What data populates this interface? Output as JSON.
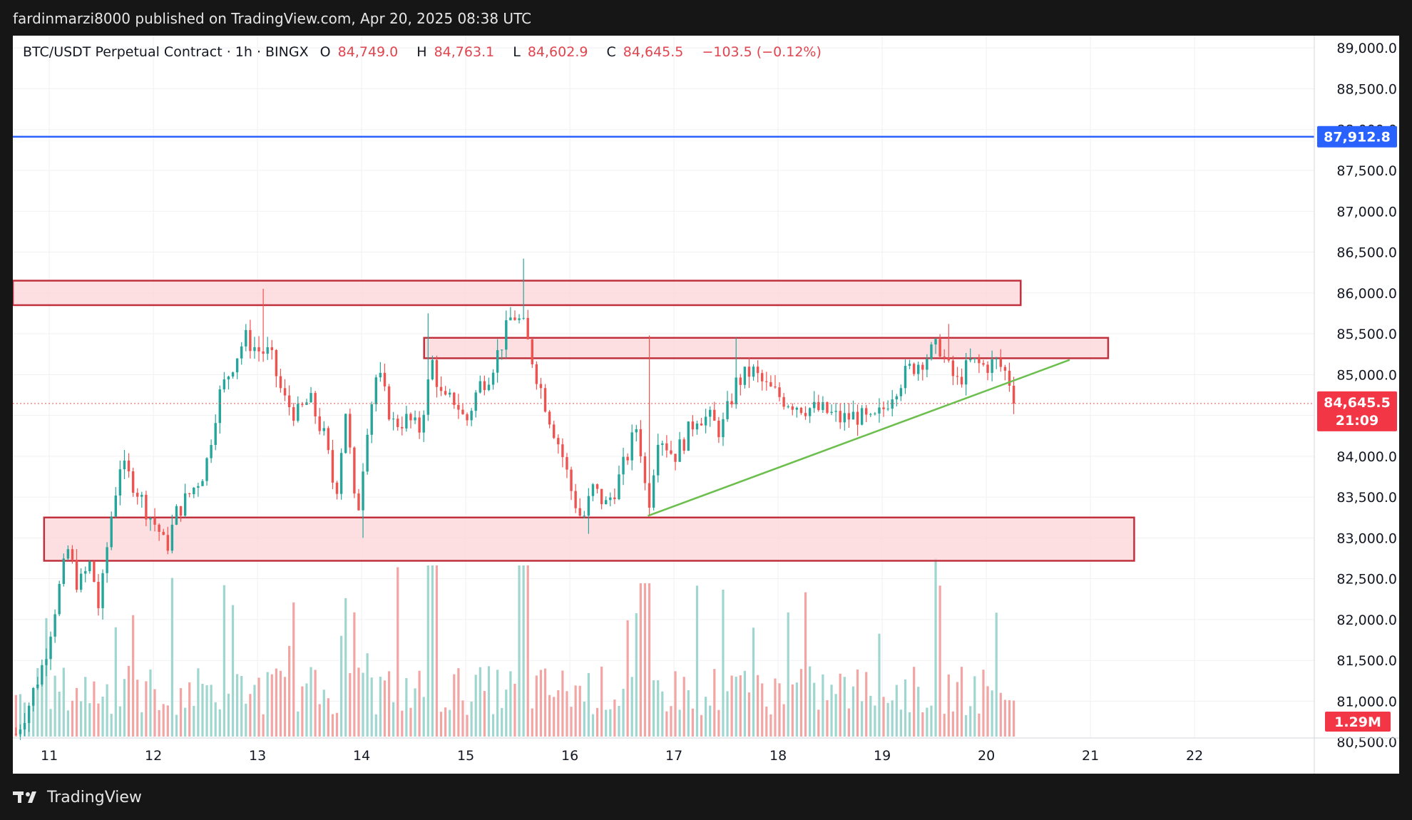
{
  "header": {
    "published_text": "fardinmarzi8000 published on TradingView.com, Apr 20, 2025 08:38 UTC"
  },
  "footer": {
    "brand": "TradingView"
  },
  "legend": {
    "symbol": "BTC/USDT Perpetual Contract · 1h · BINGX",
    "open_label": "O",
    "open": "84,749.0",
    "high_label": "H",
    "high": "84,763.1",
    "low_label": "L",
    "low": "84,602.9",
    "close_label": "C",
    "close": "84,645.5",
    "change": "−103.5 (−0.12%)"
  },
  "colors": {
    "up": "#26a69a",
    "down": "#ef5350",
    "vol_up": "#9fd6cf",
    "vol_down": "#f3a5a4",
    "zone_fill": "#fdd7da",
    "zone_stroke": "#c0313d",
    "h_line": "#2962ff",
    "trend_line": "#6cbf4e",
    "price_label_bg": "#f23645"
  },
  "chart_data": {
    "type": "candlestick",
    "y_axis": {
      "range": [
        80550,
        89150
      ],
      "tick_labels": [
        "89,000.0",
        "88,500.0",
        "88,000.0",
        "87,500.0",
        "87,000.0",
        "86,500.0",
        "86,000.0",
        "85,500.0",
        "85,000.0",
        "84,500.0",
        "84,000.0",
        "83,500.0",
        "83,000.0",
        "82,500.0",
        "82,000.0",
        "81,500.0",
        "81,000.0",
        "80,500.0"
      ],
      "tick_values": [
        89000,
        88500,
        88000,
        87500,
        87000,
        86500,
        86000,
        85500,
        85000,
        84500,
        84000,
        83500,
        83000,
        82500,
        82000,
        81500,
        81000,
        80500
      ]
    },
    "x_axis": {
      "tick_labels": [
        "11",
        "12",
        "13",
        "14",
        "15",
        "16",
        "17",
        "18",
        "19",
        "20",
        "21",
        "22"
      ],
      "tick_days": [
        11,
        12,
        13,
        14,
        15,
        16,
        17,
        18,
        19,
        20,
        21,
        22
      ],
      "range_days": [
        10.65,
        23.15
      ]
    },
    "horizontal_line": {
      "price": 87912.8,
      "label": "87,912.8"
    },
    "last_price": {
      "price": 84645.5,
      "label": "84,645.5",
      "countdown": "21:09"
    },
    "volume_label": "1.29M",
    "zones": [
      {
        "from_day": 10.65,
        "to_day": 20.33,
        "top": 86150,
        "bottom": 85850
      },
      {
        "from_day": 14.6,
        "to_day": 21.17,
        "top": 85450,
        "bottom": 85200
      },
      {
        "from_day": 10.95,
        "to_day": 21.42,
        "top": 83250,
        "bottom": 82720
      }
    ],
    "trend_line": {
      "start": {
        "day": 16.75,
        "price": 83270
      },
      "end": {
        "day": 20.8,
        "price": 85180
      }
    },
    "ohlc_anchors": [
      [
        10.68,
        80600
      ],
      [
        10.8,
        80950
      ],
      [
        10.95,
        81500
      ],
      [
        11.08,
        82300
      ],
      [
        11.18,
        82850
      ],
      [
        11.28,
        82400
      ],
      [
        11.4,
        82700
      ],
      [
        11.48,
        82100
      ],
      [
        11.58,
        83150
      ],
      [
        11.68,
        83900
      ],
      [
        11.82,
        83650
      ],
      [
        11.95,
        83300
      ],
      [
        12.05,
        83100
      ],
      [
        12.12,
        82850
      ],
      [
        12.22,
        83300
      ],
      [
        12.38,
        83600
      ],
      [
        12.5,
        83850
      ],
      [
        12.62,
        84700
      ],
      [
        12.75,
        85100
      ],
      [
        12.88,
        85450
      ],
      [
        13.0,
        85300
      ],
      [
        13.12,
        85250
      ],
      [
        13.25,
        84700
      ],
      [
        13.38,
        84500
      ],
      [
        13.5,
        84700
      ],
      [
        13.65,
        84200
      ],
      [
        13.75,
        83500
      ],
      [
        13.85,
        84600
      ],
      [
        13.95,
        83150
      ],
      [
        14.05,
        84350
      ],
      [
        14.15,
        85050
      ],
      [
        14.3,
        84400
      ],
      [
        14.45,
        84450
      ],
      [
        14.55,
        84300
      ],
      [
        14.68,
        85150
      ],
      [
        14.78,
        84650
      ],
      [
        14.9,
        84700
      ],
      [
        15.0,
        84400
      ],
      [
        15.12,
        84850
      ],
      [
        15.22,
        85000
      ],
      [
        15.32,
        85300
      ],
      [
        15.45,
        85750
      ],
      [
        15.55,
        85600
      ],
      [
        15.68,
        85000
      ],
      [
        15.8,
        84500
      ],
      [
        15.92,
        84050
      ],
      [
        16.02,
        83550
      ],
      [
        16.12,
        83200
      ],
      [
        16.22,
        83600
      ],
      [
        16.35,
        83400
      ],
      [
        16.45,
        83650
      ],
      [
        16.55,
        84000
      ],
      [
        16.65,
        84400
      ],
      [
        16.75,
        83350
      ],
      [
        16.85,
        84300
      ],
      [
        17.0,
        84000
      ],
      [
        17.1,
        84200
      ],
      [
        17.22,
        84500
      ],
      [
        17.35,
        84450
      ],
      [
        17.45,
        84300
      ],
      [
        17.6,
        84900
      ],
      [
        17.75,
        85050
      ],
      [
        17.88,
        84850
      ],
      [
        18.05,
        84700
      ],
      [
        18.25,
        84600
      ],
      [
        18.45,
        84550
      ],
      [
        18.6,
        84450
      ],
      [
        18.75,
        84500
      ],
      [
        18.9,
        84400
      ],
      [
        19.0,
        84550
      ],
      [
        19.1,
        84800
      ],
      [
        19.25,
        85050
      ],
      [
        19.4,
        85200
      ],
      [
        19.55,
        85350
      ],
      [
        19.62,
        85100
      ],
      [
        19.72,
        84900
      ],
      [
        19.85,
        85150
      ],
      [
        19.98,
        85100
      ],
      [
        20.1,
        85150
      ],
      [
        20.2,
        85000
      ],
      [
        20.3,
        84620
      ]
    ]
  }
}
